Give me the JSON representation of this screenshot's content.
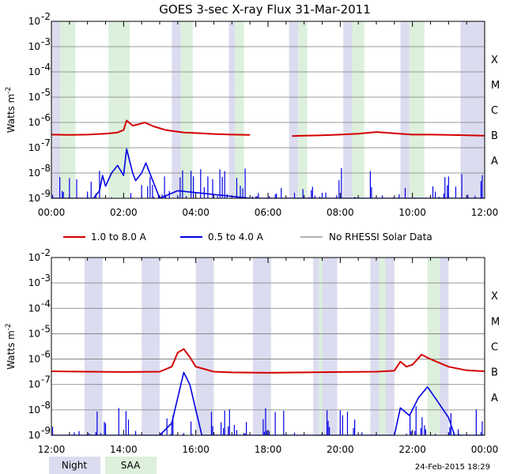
{
  "title": "GOES 3-sec X-ray Flux   31-Mar-2011",
  "ylabel": "Watts m",
  "ylabel_sup": "-2",
  "flare_classes": [
    "X",
    "M",
    "C",
    "B",
    "A"
  ],
  "footer_timestamp": "24-Feb-2015 18:29",
  "legend": {
    "long": "1.0 to 8.0 A",
    "short": "0.5 to 4.0 A",
    "norhessi": "No RHESSI Solar Data",
    "night": "Night",
    "saa": "SAA"
  },
  "colors": {
    "long": "#d40000",
    "short": "#0000e6",
    "norhessi": "#999999",
    "night": "#dcdcf0",
    "saa": "#dcf0dc",
    "grid": "#7a7a7a"
  },
  "chart_data": [
    {
      "type": "line",
      "title": "GOES 3-sec X-ray Flux   31-Mar-2011",
      "xlabel": "",
      "ylabel": "Watts m-2",
      "xlim": [
        "00:00",
        "12:00"
      ],
      "ylim": [
        1e-09,
        0.01
      ],
      "log_y": true,
      "grid": true,
      "x_ticks": [
        "00:00",
        "02:00",
        "04:00",
        "06:00",
        "08:00",
        "10:00",
        "12:00"
      ],
      "y_ticks": [
        "10-9",
        "10-8",
        "10-7",
        "10-6",
        "10-5",
        "10-4",
        "10-3",
        "10-2"
      ],
      "night_intervals": [
        [
          "00:00",
          "00:15"
        ],
        [
          "03:20",
          "03:35"
        ],
        [
          "04:55",
          "05:05"
        ],
        [
          "06:35",
          "06:50"
        ],
        [
          "08:05",
          "08:20"
        ],
        [
          "09:40",
          "09:55"
        ],
        [
          "11:20",
          "12:00"
        ]
      ],
      "saa_intervals": [
        [
          "00:15",
          "00:40"
        ],
        [
          "01:35",
          "02:10"
        ],
        [
          "03:35",
          "03:55"
        ],
        [
          "05:05",
          "05:20"
        ],
        [
          "06:50",
          "07:05"
        ],
        [
          "08:20",
          "08:40"
        ],
        [
          "09:55",
          "10:20"
        ]
      ],
      "series": [
        {
          "name": "1.0 to 8.0 A",
          "color": "red",
          "points": [
            [
              "00:00",
              3.3e-07
            ],
            [
              "00:30",
              3.2e-07
            ],
            [
              "01:00",
              3.3e-07
            ],
            [
              "01:30",
              3.6e-07
            ],
            [
              "01:50",
              4e-07
            ],
            [
              "02:00",
              5e-07
            ],
            [
              "02:05",
              1.2e-06
            ],
            [
              "02:15",
              7.5e-07
            ],
            [
              "02:25",
              8.5e-07
            ],
            [
              "02:35",
              1e-06
            ],
            [
              "02:50",
              7e-07
            ],
            [
              "03:10",
              5e-07
            ],
            [
              "03:40",
              4e-07
            ],
            [
              "04:00",
              3.8e-07
            ],
            [
              "04:30",
              3.5e-07
            ],
            [
              "05:00",
              3.3e-07
            ],
            [
              "05:30",
              3.2e-07
            ]
          ]
        },
        {
          "name": "1.0 to 8.0 A",
          "color": "red",
          "points": [
            [
              "06:40",
              2.9e-07
            ],
            [
              "07:00",
              3e-07
            ],
            [
              "07:30",
              3.1e-07
            ],
            [
              "08:00",
              3.3e-07
            ],
            [
              "08:30",
              3.6e-07
            ],
            [
              "09:00",
              4.2e-07
            ],
            [
              "09:30",
              3.7e-07
            ],
            [
              "10:00",
              3.3e-07
            ],
            [
              "10:30",
              3.3e-07
            ],
            [
              "11:00",
              3.2e-07
            ],
            [
              "11:30",
              3.1e-07
            ],
            [
              "12:00",
              3e-07
            ]
          ]
        },
        {
          "name": "0.5 to 4.0 A",
          "color": "blue",
          "points": [
            [
              "00:00",
              1e-09
            ],
            [
              "01:10",
              1e-09
            ],
            [
              "01:20",
              2e-09
            ],
            [
              "01:25",
              8e-09
            ],
            [
              "01:30",
              3e-09
            ],
            [
              "01:40",
              1e-08
            ],
            [
              "01:50",
              2e-08
            ],
            [
              "02:00",
              8e-09
            ],
            [
              "02:05",
              9e-08
            ],
            [
              "02:15",
              1e-08
            ],
            [
              "02:20",
              5e-09
            ],
            [
              "02:30",
              1e-08
            ],
            [
              "02:37",
              2.5e-08
            ],
            [
              "02:45",
              8e-09
            ],
            [
              "03:00",
              1e-09
            ],
            [
              "03:30",
              2e-09
            ],
            [
              "05:30",
              1e-09
            ],
            [
              "06:40",
              1e-09
            ],
            [
              "12:00",
              1e-09
            ]
          ]
        }
      ]
    },
    {
      "type": "line",
      "xlabel": "",
      "ylabel": "Watts m-2",
      "xlim": [
        "12:00",
        "00:00"
      ],
      "ylim": [
        1e-09,
        0.01
      ],
      "log_y": true,
      "grid": true,
      "x_ticks": [
        "12:00",
        "14:00",
        "16:00",
        "18:00",
        "20:00",
        "22:00",
        "00:00"
      ],
      "y_ticks": [
        "10-9",
        "10-8",
        "10-7",
        "10-6",
        "10-5",
        "10-4",
        "10-3",
        "10-2"
      ],
      "night_intervals": [
        [
          "12:55",
          "13:25"
        ],
        [
          "14:30",
          "15:00"
        ],
        [
          "16:00",
          "16:30"
        ],
        [
          "17:35",
          "18:05"
        ],
        [
          "19:15",
          "19:25"
        ],
        [
          "19:30",
          "19:55"
        ],
        [
          "20:50",
          "21:05"
        ],
        [
          "21:15",
          "21:30"
        ],
        [
          "22:45",
          "23:00"
        ]
      ],
      "saa_intervals": [
        [
          "19:25",
          "19:30"
        ],
        [
          "21:05",
          "21:15"
        ],
        [
          "22:25",
          "22:45"
        ]
      ],
      "series": [
        {
          "name": "1.0 to 8.0 A",
          "color": "red",
          "points": [
            [
              "12:00",
              3.3e-07
            ],
            [
              "13:00",
              3.2e-07
            ],
            [
              "14:00",
              3.1e-07
            ],
            [
              "15:00",
              3.2e-07
            ],
            [
              "15:20",
              5e-07
            ],
            [
              "15:30",
              1.8e-06
            ],
            [
              "15:40",
              2.5e-06
            ],
            [
              "15:50",
              1.2e-06
            ],
            [
              "16:00",
              5e-07
            ],
            [
              "16:30",
              3.2e-07
            ],
            [
              "17:00",
              3e-07
            ],
            [
              "18:00",
              2.9e-07
            ],
            [
              "19:00",
              3e-07
            ],
            [
              "20:00",
              3.1e-07
            ],
            [
              "21:00",
              3.2e-07
            ],
            [
              "21:30",
              3.5e-07
            ],
            [
              "21:40",
              8e-07
            ],
            [
              "21:50",
              5e-07
            ],
            [
              "22:00",
              6e-07
            ],
            [
              "22:15",
              1.5e-06
            ],
            [
              "22:30",
              1e-06
            ],
            [
              "23:00",
              5e-07
            ],
            [
              "23:30",
              3.6e-07
            ],
            [
              "00:00",
              3.3e-07
            ]
          ]
        },
        {
          "name": "0.5 to 4.0 A",
          "color": "blue",
          "points": [
            [
              "12:00",
              1e-09
            ],
            [
              "15:00",
              1e-09
            ],
            [
              "15:20",
              3e-09
            ],
            [
              "15:30",
              3e-08
            ],
            [
              "15:40",
              3e-07
            ],
            [
              "15:50",
              1e-07
            ],
            [
              "16:00",
              1e-08
            ],
            [
              "16:10",
              1e-09
            ],
            [
              "17:00",
              1e-09
            ],
            [
              "21:30",
              1e-09
            ],
            [
              "21:40",
              1.2e-08
            ],
            [
              "21:55",
              6e-09
            ],
            [
              "22:10",
              3e-08
            ],
            [
              "22:25",
              8e-08
            ],
            [
              "22:40",
              2.5e-08
            ],
            [
              "23:00",
              5e-09
            ],
            [
              "23:10",
              1e-09
            ],
            [
              "00:00",
              1e-09
            ]
          ]
        }
      ]
    }
  ]
}
